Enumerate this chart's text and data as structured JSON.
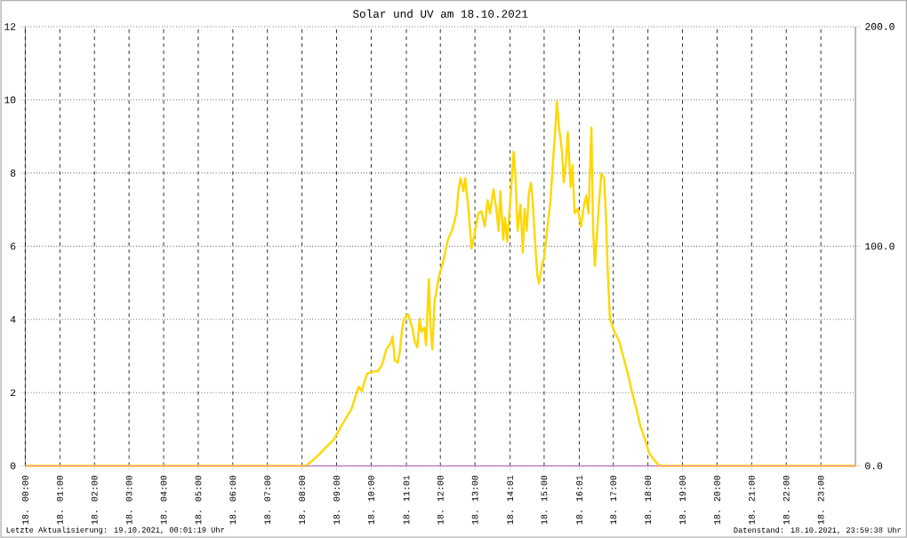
{
  "chart_data": {
    "type": "line",
    "title": "Solar und UV am 18.10.2021",
    "xlim": [
      "2021-10-18T00:00",
      "2021-10-19T00:00"
    ],
    "xticks": [
      {
        "value": "2021-10-18T00:00",
        "label": "18. 00:00"
      },
      {
        "value": "2021-10-18T01:00",
        "label": "18. 01:00"
      },
      {
        "value": "2021-10-18T02:00",
        "label": "18. 02:00"
      },
      {
        "value": "2021-10-18T03:00",
        "label": "18. 03:00"
      },
      {
        "value": "2021-10-18T04:00",
        "label": "18. 04:00"
      },
      {
        "value": "2021-10-18T05:00",
        "label": "18. 05:00"
      },
      {
        "value": "2021-10-18T06:00",
        "label": "18. 06:00"
      },
      {
        "value": "2021-10-18T07:00",
        "label": "18. 07:00"
      },
      {
        "value": "2021-10-18T08:00",
        "label": "18. 08:00"
      },
      {
        "value": "2021-10-18T09:00",
        "label": "18. 09:00"
      },
      {
        "value": "2021-10-18T10:00",
        "label": "18. 10:00"
      },
      {
        "value": "2021-10-18T11:01",
        "label": "18. 11:01"
      },
      {
        "value": "2021-10-18T12:00",
        "label": "18. 12:00"
      },
      {
        "value": "2021-10-18T13:00",
        "label": "18. 13:00"
      },
      {
        "value": "2021-10-18T14:01",
        "label": "18. 14:01"
      },
      {
        "value": "2021-10-18T15:00",
        "label": "18. 15:00"
      },
      {
        "value": "2021-10-18T16:01",
        "label": "18. 16:01"
      },
      {
        "value": "2021-10-18T17:00",
        "label": "18. 17:00"
      },
      {
        "value": "2021-10-18T18:00",
        "label": "18. 18:00"
      },
      {
        "value": "2021-10-18T19:00",
        "label": "18. 19:00"
      },
      {
        "value": "2021-10-18T20:00",
        "label": "18. 20:00"
      },
      {
        "value": "2021-10-18T21:00",
        "label": "18. 21:00"
      },
      {
        "value": "2021-10-18T22:00",
        "label": "18. 22:00"
      },
      {
        "value": "2021-10-18T23:00",
        "label": "18. 23:00"
      }
    ],
    "ylim": [
      0,
      12
    ],
    "yticks": [
      0,
      2,
      4,
      6,
      8,
      10,
      12
    ],
    "y2lim": [
      0,
      200
    ],
    "y2ticks": [
      {
        "value": 0,
        "label": "0.0"
      },
      {
        "value": 100,
        "label": "100.0"
      },
      {
        "value": 200,
        "label": "200.0"
      }
    ],
    "grid": true,
    "series": [
      {
        "color": "#ffd700",
        "axis": "y2",
        "x": [
          "2021-10-18T00:00",
          "2021-10-18T08:07",
          "2021-10-18T08:25",
          "2021-10-18T08:40",
          "2021-10-18T08:55",
          "2021-10-18T09:10",
          "2021-10-18T09:26",
          "2021-10-18T09:33",
          "2021-10-18T09:38",
          "2021-10-18T09:44",
          "2021-10-18T09:49",
          "2021-10-18T09:53",
          "2021-10-18T10:04",
          "2021-10-18T10:11",
          "2021-10-18T10:19",
          "2021-10-18T10:26",
          "2021-10-18T10:34",
          "2021-10-18T10:37",
          "2021-10-18T10:41",
          "2021-10-18T10:46",
          "2021-10-18T10:49",
          "2021-10-18T10:54",
          "2021-10-18T10:57",
          "2021-10-18T11:04",
          "2021-10-18T11:12",
          "2021-10-18T11:15",
          "2021-10-18T11:20",
          "2021-10-18T11:24",
          "2021-10-18T11:27",
          "2021-10-18T11:32",
          "2021-10-18T11:35",
          "2021-10-18T11:40",
          "2021-10-18T11:43",
          "2021-10-18T11:46",
          "2021-10-18T11:50",
          "2021-10-18T11:58",
          "2021-10-18T12:05",
          "2021-10-18T12:13",
          "2021-10-18T12:20",
          "2021-10-18T12:28",
          "2021-10-18T12:31",
          "2021-10-18T12:35",
          "2021-10-18T12:40",
          "2021-10-18T12:43",
          "2021-10-18T12:48",
          "2021-10-18T12:54",
          "2021-10-18T12:59",
          "2021-10-18T13:06",
          "2021-10-18T13:11",
          "2021-10-18T13:17",
          "2021-10-18T13:22",
          "2021-10-18T13:26",
          "2021-10-18T13:32",
          "2021-10-18T13:37",
          "2021-10-18T13:41",
          "2021-10-18T13:44",
          "2021-10-18T13:49",
          "2021-10-18T13:52",
          "2021-10-18T13:56",
          "2021-10-18T13:59",
          "2021-10-18T14:04",
          "2021-10-18T14:07",
          "2021-10-18T14:10",
          "2021-10-18T14:14",
          "2021-10-18T14:19",
          "2021-10-18T14:23",
          "2021-10-18T14:26",
          "2021-10-18T14:30",
          "2021-10-18T14:33",
          "2021-10-18T14:37",
          "2021-10-18T14:40",
          "2021-10-18T14:45",
          "2021-10-18T14:48",
          "2021-10-18T14:51",
          "2021-10-18T14:56",
          "2021-10-18T15:00",
          "2021-10-18T15:05",
          "2021-10-18T15:11",
          "2021-10-18T15:16",
          "2021-10-18T15:20",
          "2021-10-18T15:22",
          "2021-10-18T15:26",
          "2021-10-18T15:31",
          "2021-10-18T15:34",
          "2021-10-18T15:38",
          "2021-10-18T15:41",
          "2021-10-18T15:46",
          "2021-10-18T15:49",
          "2021-10-18T15:53",
          "2021-10-18T15:58",
          "2021-10-18T16:04",
          "2021-10-18T16:08",
          "2021-10-18T16:13",
          "2021-10-18T16:17",
          "2021-10-18T16:22",
          "2021-10-18T16:25",
          "2021-10-18T16:28",
          "2021-10-18T16:31",
          "2021-10-18T16:34",
          "2021-10-18T16:39",
          "2021-10-18T16:44",
          "2021-10-18T16:47",
          "2021-10-18T16:50",
          "2021-10-18T16:54",
          "2021-10-18T17:02",
          "2021-10-18T17:10",
          "2021-10-18T17:17",
          "2021-10-18T17:25",
          "2021-10-18T17:32",
          "2021-10-18T17:40",
          "2021-10-18T17:47",
          "2021-10-18T17:55",
          "2021-10-18T18:02",
          "2021-10-18T18:10",
          "2021-10-18T18:18",
          "2021-10-18T18:25",
          "2021-10-19T00:00"
        ],
        "values": [
          0,
          0,
          4,
          8,
          12,
          19,
          26,
          32,
          36,
          34,
          39,
          42,
          43,
          43,
          46,
          53,
          56,
          59,
          48,
          47,
          51,
          63,
          67,
          69,
          62,
          57,
          54,
          67,
          61,
          63,
          55,
          85,
          63,
          53,
          75,
          87,
          93,
          103,
          107,
          115,
          125,
          131,
          125,
          131,
          119,
          99,
          105,
          115,
          116,
          109,
          121,
          115,
          126,
          117,
          107,
          125,
          103,
          113,
          102,
          113,
          131,
          143,
          133,
          107,
          119,
          97,
          117,
          107,
          123,
          129,
          121,
          99,
          87,
          83,
          91,
          95,
          107,
          121,
          141,
          156,
          166,
          154,
          143,
          129,
          139,
          152,
          127,
          137,
          115,
          117,
          109,
          117,
          123,
          115,
          154,
          107,
          91,
          103,
          115,
          133,
          131,
          115,
          91,
          67,
          61,
          57,
          50,
          42,
          34,
          26,
          18,
          12,
          6,
          3,
          0.4,
          0,
          0
        ]
      },
      {
        "color": "#ee82ee",
        "x": [
          "2021-10-18T00:00",
          "2021-10-19T00:00"
        ],
        "values": [
          0,
          0
        ]
      }
    ],
    "annotations": [
      "Letzte Aktualisierung: 19.10.2021, 00:01:19 Uhr",
      "Datenstand: 18.10.2021, 23:59:38 Uhr"
    ]
  }
}
